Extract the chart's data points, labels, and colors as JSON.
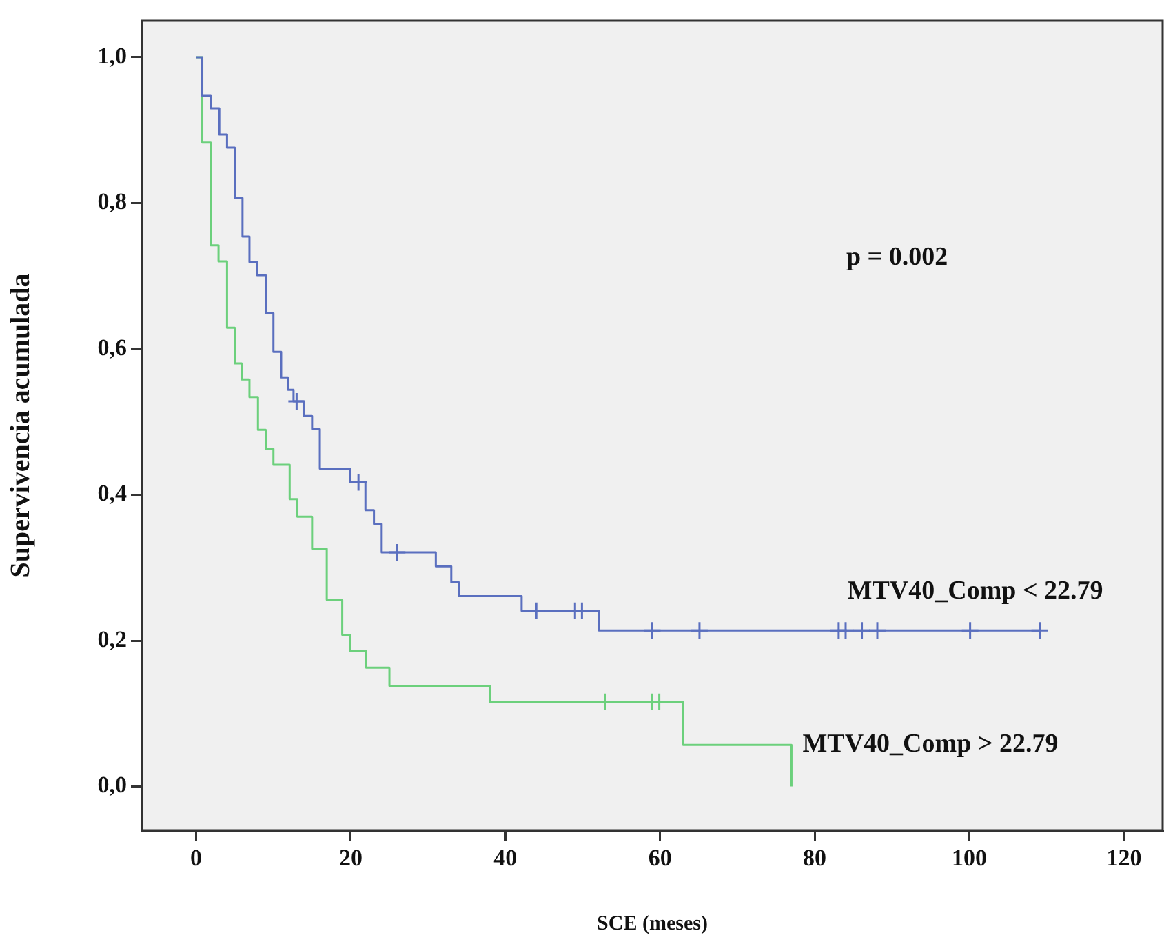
{
  "chart_data": {
    "type": "step",
    "xlabel": "SCE (meses)",
    "ylabel": "Supervivencia acumulada",
    "annotations": [
      "p = 0.002"
    ],
    "xlim": [
      -7,
      125
    ],
    "xticks": [
      0,
      20,
      40,
      60,
      80,
      100,
      120
    ],
    "ylim": [
      -0.06,
      1.05
    ],
    "yticks": [
      {
        "value": 0,
        "label": "0,0"
      },
      {
        "value": 0.2,
        "label": "0,2"
      },
      {
        "value": 0.4,
        "label": "0,4"
      },
      {
        "value": 0.6,
        "label": "0,6"
      },
      {
        "value": 0.8,
        "label": "0,8"
      },
      {
        "value": 1,
        "label": "1,0"
      }
    ],
    "grid": false,
    "legend": false,
    "marker": "none",
    "line_style": "solid",
    "series": [
      {
        "type": "step",
        "name": "MTV40_Comp < 22.79",
        "color": "#5a6fbf",
        "x": [
          0,
          0.8,
          1.9,
          3.0,
          4.0,
          5.0,
          6.0,
          6.9,
          7.9,
          9.0,
          10.0,
          11.0,
          11.9,
          12.6,
          13.9,
          15.0,
          16.0,
          19.9,
          21.9,
          23.0,
          24.0,
          31.0,
          33.0,
          34.0,
          42.1,
          52.1,
          109.1
        ],
        "values": [
          1.0,
          0.947,
          0.93,
          0.894,
          0.876,
          0.807,
          0.754,
          0.719,
          0.701,
          0.649,
          0.596,
          0.561,
          0.544,
          0.528,
          0.508,
          0.49,
          0.436,
          0.417,
          0.379,
          0.36,
          0.321,
          0.302,
          0.28,
          0.261,
          0.241,
          0.214,
          0.214
        ]
      },
      {
        "type": "step",
        "name": "MTV40_Comp > 22.79",
        "color": "#6cd07c",
        "x": [
          0,
          0.8,
          1.9,
          2.9,
          4.0,
          5.0,
          5.9,
          6.9,
          8.0,
          9.0,
          10.0,
          12.1,
          13.1,
          15.0,
          16.9,
          18.9,
          19.9,
          22.0,
          25.0,
          38.0,
          63.0,
          77.0
        ],
        "values": [
          1.0,
          0.883,
          0.742,
          0.72,
          0.629,
          0.58,
          0.558,
          0.534,
          0.489,
          0.463,
          0.441,
          0.394,
          0.37,
          0.326,
          0.256,
          0.208,
          0.186,
          0.163,
          0.138,
          0.116,
          0.057,
          0.0
        ]
      },
      {
        "type": "scatter",
        "marker": "cross",
        "color": "#5a6fbf",
        "x": [
          13.0,
          21.0,
          26.0,
          44.0,
          49.0,
          49.9,
          59.0,
          65.1,
          83.1,
          84.0,
          86.1,
          88.1,
          100.1,
          109.1
        ],
        "values": [
          0.528,
          0.417,
          0.321,
          0.241,
          0.241,
          0.241,
          0.214,
          0.214,
          0.214,
          0.214,
          0.214,
          0.214,
          0.214,
          0.214
        ]
      },
      {
        "type": "scatter",
        "marker": "cross",
        "color": "#6cd07c",
        "x": [
          52.9,
          59.0,
          59.9
        ],
        "values": [
          0.116,
          0.116,
          0.116
        ]
      }
    ]
  }
}
